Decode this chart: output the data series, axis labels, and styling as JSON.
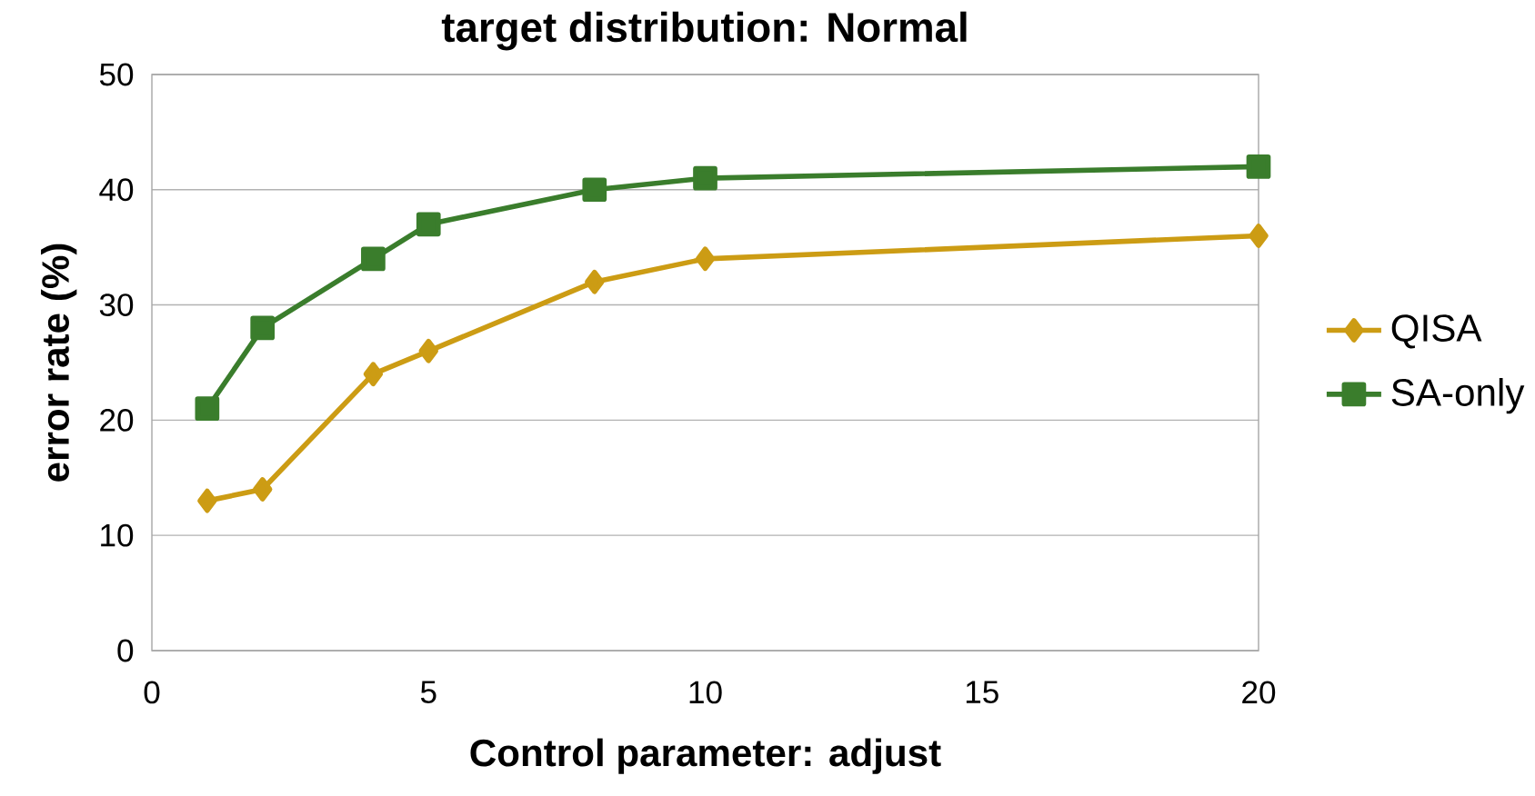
{
  "chart_data": {
    "type": "line",
    "title": "target distribution: Normal",
    "xlabel": "Control parameter: adjust",
    "ylabel": "error rate (%)",
    "x": [
      1,
      2,
      4,
      5,
      8,
      10,
      20
    ],
    "series": [
      {
        "name": "QISA",
        "color": "#cc9c14",
        "marker": "diamond",
        "values": [
          13,
          14,
          24,
          26,
          32,
          34,
          36
        ]
      },
      {
        "name": "SA-only",
        "color": "#3a7d2c",
        "marker": "square",
        "values": [
          21,
          28,
          34,
          37,
          40,
          41,
          42
        ]
      }
    ],
    "xlim": [
      0,
      20
    ],
    "xticks": [
      0,
      5,
      10,
      15,
      20
    ],
    "ylim": [
      0,
      50
    ],
    "yticks": [
      0,
      10,
      20,
      30,
      40,
      50
    ],
    "grid": "y",
    "legend": "right",
    "line_style": "solid"
  }
}
